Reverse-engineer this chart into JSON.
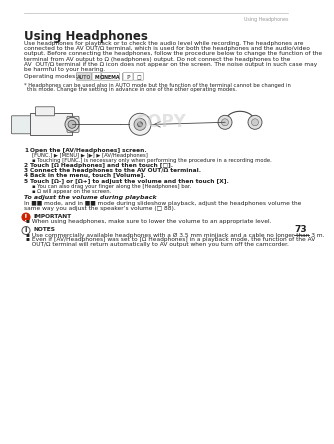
{
  "page_num": "73",
  "header_text": "Using Headphones",
  "title": "Using Headphones",
  "operating_modes_label": "Operating modes:",
  "operating_modes": [
    "AUTO",
    "M",
    "CINEMA",
    "ℙ",
    "□"
  ],
  "footnote_line1": "* Headphones can be used also in AUTO mode but the function of the terminal cannot be changed in",
  "footnote_line2": "  this mode. Change the setting in advance in one of the other operating modes.",
  "intro_lines": [
    "Use headphones for playback or to check the audio level while recording. The headphones are",
    "connected to the AV OUT/Ω terminal, which is used for both the headphones and the audio/video",
    "output. Before connecting the headphones, follow the procedure below to change the function of the",
    "terminal from AV output to Ω (headphones) output. Do not connect the headphones to the",
    "AV  OUT/Ω terminal if the Ω icon does not appear on the screen. The noise output in such case may",
    "be harmful to your hearing."
  ],
  "steps": [
    {
      "num": "1",
      "bold": "Open the [AV/Headphones] screen.",
      "subs": [
        "[FUNC.] ▶ [MENU] ▶ [▶] ▶ [AV/Headphones]",
        "▪ Touching [FUNC.] is necessary only when performing the procedure in a recording mode."
      ]
    },
    {
      "num": "2",
      "bold": "Touch [Ω Headphones] and then touch [□].",
      "subs": []
    },
    {
      "num": "3",
      "bold": "Connect the headphones to the AV OUT/Ω terminal.",
      "subs": []
    },
    {
      "num": "4",
      "bold": "Back in the menu, touch [Volume].",
      "subs": []
    },
    {
      "num": "5",
      "bold": "Touch [Ω-] or [Ω+] to adjust the volume and then touch [X].",
      "subs": [
        "▪ You can also drag your finger along the [Headphones] bar.",
        "▪ Ω will appear on the screen."
      ]
    }
  ],
  "playback_title": "To adjust the volume during playback",
  "playback_lines": [
    "In ■■ mode, and in ■■ mode during slideshow playback, adjust the headphones volume the",
    "same way you adjust the speaker’s volume (□ 88)."
  ],
  "important_title": "IMPORTANT",
  "important_bullets": [
    "▪ When using headphones, make sure to lower the volume to an appropriate level."
  ],
  "notes_title": "NOTES",
  "notes_bullets": [
    "▪ Use commercially available headphones with a Ø 3.5 mm minijack and a cable no longer than 3 m.",
    "▪ Even if [AV/Headphones] was set to [Ω Headphones] in a playback mode, the function of the AV",
    "   OUT/Ω terminal will return automatically to AV output when you turn off the camcorder."
  ],
  "bg_color": "#ffffff",
  "text_color": "#222222",
  "header_color": "#999999",
  "line_color": "#bbbbbb",
  "title_fs": 8.5,
  "body_fs": 4.2,
  "small_fs": 3.8,
  "lh_body": 5.2,
  "lh_small": 4.8
}
